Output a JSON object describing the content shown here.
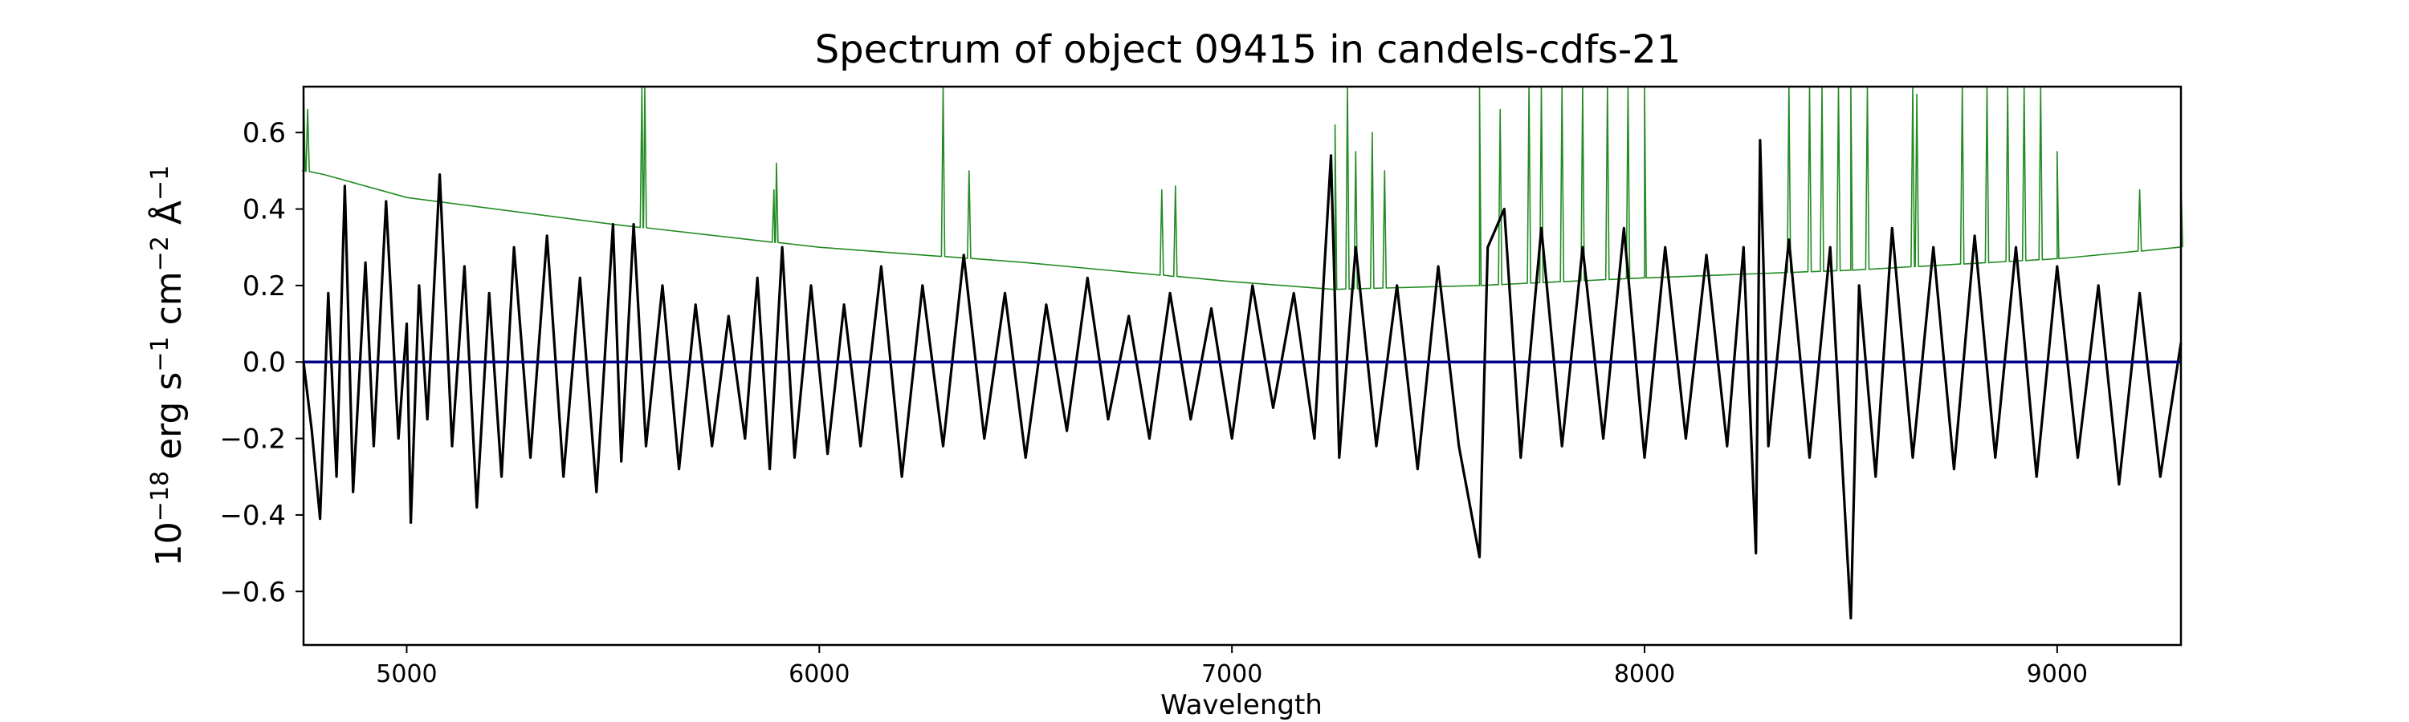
{
  "chart_data": {
    "type": "line",
    "title": "Spectrum of object 09415 in candels-cdfs-21",
    "xlabel": "Wavelength",
    "ylabel_parts": {
      "scale": "10",
      "scale_exp": "−18",
      "erg": " erg s",
      "s_exp": "−1",
      "cm": " cm",
      "cm_exp": "−2",
      "angstrom": " Å",
      "a_exp": "−1"
    },
    "xlim": [
      4750,
      9300
    ],
    "ylim": [
      -0.74,
      0.72
    ],
    "x_ticks": [
      5000,
      6000,
      7000,
      8000,
      9000
    ],
    "x_tick_labels": [
      "5000",
      "6000",
      "7000",
      "8000",
      "9000"
    ],
    "y_ticks": [
      -0.6,
      -0.4,
      -0.2,
      0.0,
      0.2,
      0.4,
      0.6
    ],
    "y_tick_labels": [
      "−0.6",
      "−0.4",
      "−0.2",
      "0.0",
      "0.2",
      "0.4",
      "0.6"
    ],
    "grid": false,
    "series": [
      {
        "role": "noise",
        "color": "#228b22",
        "continuum": [
          [
            4750,
            0.5
          ],
          [
            4800,
            0.49
          ],
          [
            5000,
            0.43
          ],
          [
            5500,
            0.36
          ],
          [
            6000,
            0.3
          ],
          [
            6500,
            0.26
          ],
          [
            7000,
            0.21
          ],
          [
            7250,
            0.19
          ],
          [
            7600,
            0.2
          ],
          [
            8000,
            0.22
          ],
          [
            8500,
            0.24
          ],
          [
            9000,
            0.27
          ],
          [
            9300,
            0.3
          ]
        ],
        "lines": [
          [
            4750,
            0.72
          ],
          [
            4760,
            0.66
          ],
          [
            5570,
            0.72
          ],
          [
            5577,
            0.72
          ],
          [
            5890,
            0.45
          ],
          [
            5896,
            0.52
          ],
          [
            6300,
            0.72
          ],
          [
            6363,
            0.5
          ],
          [
            6830,
            0.45
          ],
          [
            6863,
            0.46
          ],
          [
            7250,
            0.62
          ],
          [
            7280,
            0.72
          ],
          [
            7300,
            0.55
          ],
          [
            7340,
            0.6
          ],
          [
            7370,
            0.5
          ],
          [
            7600,
            0.72
          ],
          [
            7650,
            0.66
          ],
          [
            7720,
            0.72
          ],
          [
            7750,
            0.72
          ],
          [
            7800,
            0.72
          ],
          [
            7850,
            0.72
          ],
          [
            7910,
            0.72
          ],
          [
            7960,
            0.72
          ],
          [
            8000,
            0.72
          ],
          [
            8350,
            0.72
          ],
          [
            8400,
            0.72
          ],
          [
            8430,
            0.72
          ],
          [
            8470,
            0.72
          ],
          [
            8500,
            0.72
          ],
          [
            8540,
            0.72
          ],
          [
            8650,
            0.72
          ],
          [
            8660,
            0.7
          ],
          [
            8770,
            0.72
          ],
          [
            8830,
            0.72
          ],
          [
            8880,
            0.72
          ],
          [
            8920,
            0.72
          ],
          [
            8960,
            0.72
          ],
          [
            9000,
            0.55
          ],
          [
            9200,
            0.45
          ],
          [
            9300,
            0.48
          ]
        ]
      },
      {
        "role": "flux",
        "color": "#000000",
        "points": [
          [
            4750,
            0.0
          ],
          [
            4770,
            -0.18
          ],
          [
            4790,
            -0.41
          ],
          [
            4810,
            0.18
          ],
          [
            4830,
            -0.3
          ],
          [
            4850,
            0.46
          ],
          [
            4870,
            -0.34
          ],
          [
            4900,
            0.26
          ],
          [
            4920,
            -0.22
          ],
          [
            4950,
            0.42
          ],
          [
            4980,
            -0.2
          ],
          [
            5000,
            0.1
          ],
          [
            5010,
            -0.42
          ],
          [
            5030,
            0.2
          ],
          [
            5050,
            -0.15
          ],
          [
            5080,
            0.49
          ],
          [
            5110,
            -0.22
          ],
          [
            5140,
            0.25
          ],
          [
            5170,
            -0.38
          ],
          [
            5200,
            0.18
          ],
          [
            5230,
            -0.3
          ],
          [
            5260,
            0.3
          ],
          [
            5300,
            -0.25
          ],
          [
            5340,
            0.33
          ],
          [
            5380,
            -0.3
          ],
          [
            5420,
            0.22
          ],
          [
            5460,
            -0.34
          ],
          [
            5500,
            0.36
          ],
          [
            5520,
            -0.26
          ],
          [
            5550,
            0.36
          ],
          [
            5580,
            -0.22
          ],
          [
            5620,
            0.2
          ],
          [
            5660,
            -0.28
          ],
          [
            5700,
            0.15
          ],
          [
            5740,
            -0.22
          ],
          [
            5780,
            0.12
          ],
          [
            5820,
            -0.2
          ],
          [
            5850,
            0.22
          ],
          [
            5880,
            -0.28
          ],
          [
            5910,
            0.3
          ],
          [
            5940,
            -0.25
          ],
          [
            5980,
            0.2
          ],
          [
            6020,
            -0.24
          ],
          [
            6060,
            0.15
          ],
          [
            6100,
            -0.22
          ],
          [
            6150,
            0.25
          ],
          [
            6200,
            -0.3
          ],
          [
            6250,
            0.2
          ],
          [
            6300,
            -0.22
          ],
          [
            6350,
            0.28
          ],
          [
            6400,
            -0.2
          ],
          [
            6450,
            0.18
          ],
          [
            6500,
            -0.25
          ],
          [
            6550,
            0.15
          ],
          [
            6600,
            -0.18
          ],
          [
            6650,
            0.22
          ],
          [
            6700,
            -0.15
          ],
          [
            6750,
            0.12
          ],
          [
            6800,
            -0.2
          ],
          [
            6850,
            0.18
          ],
          [
            6900,
            -0.15
          ],
          [
            6950,
            0.14
          ],
          [
            7000,
            -0.2
          ],
          [
            7050,
            0.2
          ],
          [
            7100,
            -0.12
          ],
          [
            7150,
            0.18
          ],
          [
            7200,
            -0.2
          ],
          [
            7240,
            0.54
          ],
          [
            7260,
            -0.25
          ],
          [
            7300,
            0.3
          ],
          [
            7350,
            -0.22
          ],
          [
            7400,
            0.2
          ],
          [
            7450,
            -0.28
          ],
          [
            7500,
            0.25
          ],
          [
            7550,
            -0.22
          ],
          [
            7600,
            -0.51
          ],
          [
            7620,
            0.3
          ],
          [
            7660,
            0.4
          ],
          [
            7700,
            -0.25
          ],
          [
            7750,
            0.35
          ],
          [
            7800,
            -0.22
          ],
          [
            7850,
            0.3
          ],
          [
            7900,
            -0.2
          ],
          [
            7950,
            0.35
          ],
          [
            8000,
            -0.25
          ],
          [
            8050,
            0.3
          ],
          [
            8100,
            -0.2
          ],
          [
            8150,
            0.28
          ],
          [
            8200,
            -0.22
          ],
          [
            8240,
            0.3
          ],
          [
            8270,
            -0.5
          ],
          [
            8280,
            0.58
          ],
          [
            8300,
            -0.22
          ],
          [
            8350,
            0.32
          ],
          [
            8400,
            -0.25
          ],
          [
            8450,
            0.3
          ],
          [
            8500,
            -0.67
          ],
          [
            8520,
            0.2
          ],
          [
            8560,
            -0.3
          ],
          [
            8600,
            0.35
          ],
          [
            8650,
            -0.25
          ],
          [
            8700,
            0.3
          ],
          [
            8750,
            -0.28
          ],
          [
            8800,
            0.33
          ],
          [
            8850,
            -0.25
          ],
          [
            8900,
            0.3
          ],
          [
            8950,
            -0.3
          ],
          [
            9000,
            0.25
          ],
          [
            9050,
            -0.25
          ],
          [
            9100,
            0.2
          ],
          [
            9150,
            -0.32
          ],
          [
            9200,
            0.18
          ],
          [
            9250,
            -0.3
          ],
          [
            9300,
            0.05
          ]
        ]
      },
      {
        "role": "zero",
        "color": "#00008b",
        "points": [
          [
            4750,
            0.0
          ],
          [
            9300,
            0.0
          ]
        ]
      }
    ]
  }
}
